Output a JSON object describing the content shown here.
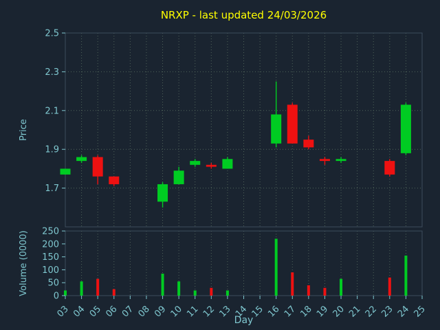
{
  "header": {
    "title": "NRXP - last updated 24/03/2026"
  },
  "chart_data": {
    "type": "candlestick",
    "title": "NRXP - last updated 24/03/2026",
    "xlabel": "Day",
    "price_axis": {
      "label": "Price",
      "ticks": [
        1.7,
        1.9,
        2.1,
        2.3,
        2.5
      ],
      "range": [
        1.5,
        2.5
      ],
      "grid": true
    },
    "volume_axis": {
      "label": "Volume (0000)",
      "ticks": [
        0,
        50,
        100,
        150,
        200,
        250
      ],
      "range": [
        0,
        250
      ],
      "grid": false
    },
    "x_ticks": [
      "03",
      "04",
      "05",
      "06",
      "07",
      "08",
      "09",
      "10",
      "11",
      "12",
      "13",
      "14",
      "15",
      "16",
      "17",
      "18",
      "19",
      "20",
      "21",
      "22",
      "23",
      "24",
      "25"
    ],
    "x_range": [
      3,
      25
    ],
    "candles": [
      {
        "day": 3,
        "open": 1.77,
        "high": 1.8,
        "low": 1.77,
        "close": 1.8,
        "volume": 20
      },
      {
        "day": 4,
        "open": 1.84,
        "high": 1.87,
        "low": 1.83,
        "close": 1.86,
        "volume": 55
      },
      {
        "day": 5,
        "open": 1.86,
        "high": 1.87,
        "low": 1.72,
        "close": 1.76,
        "volume": 65
      },
      {
        "day": 6,
        "open": 1.76,
        "high": 1.76,
        "low": 1.71,
        "close": 1.72,
        "volume": 25
      },
      {
        "day": 9,
        "open": 1.63,
        "high": 1.73,
        "low": 1.6,
        "close": 1.72,
        "volume": 85
      },
      {
        "day": 10,
        "open": 1.72,
        "high": 1.81,
        "low": 1.72,
        "close": 1.79,
        "volume": 55
      },
      {
        "day": 11,
        "open": 1.82,
        "high": 1.85,
        "low": 1.81,
        "close": 1.84,
        "volume": 20
      },
      {
        "day": 12,
        "open": 1.82,
        "high": 1.83,
        "low": 1.8,
        "close": 1.81,
        "volume": 30
      },
      {
        "day": 13,
        "open": 1.8,
        "high": 1.86,
        "low": 1.8,
        "close": 1.85,
        "volume": 20
      },
      {
        "day": 16,
        "open": 1.93,
        "high": 2.25,
        "low": 1.91,
        "close": 2.08,
        "volume": 220
      },
      {
        "day": 17,
        "open": 2.13,
        "high": 2.14,
        "low": 1.93,
        "close": 1.93,
        "volume": 90
      },
      {
        "day": 18,
        "open": 1.95,
        "high": 1.97,
        "low": 1.9,
        "close": 1.91,
        "volume": 40
      },
      {
        "day": 19,
        "open": 1.85,
        "high": 1.86,
        "low": 1.82,
        "close": 1.84,
        "volume": 30
      },
      {
        "day": 20,
        "open": 1.84,
        "high": 1.86,
        "low": 1.83,
        "close": 1.85,
        "volume": 65
      },
      {
        "day": 23,
        "open": 1.84,
        "high": 1.85,
        "low": 1.76,
        "close": 1.77,
        "volume": 70
      },
      {
        "day": 24,
        "open": 1.88,
        "high": 2.14,
        "low": 1.87,
        "close": 2.13,
        "volume": 155
      }
    ],
    "colors": {
      "up": "#00cc22",
      "down": "#ee1111",
      "background": "#1a2430",
      "grid": "#50645a",
      "axis_text": "#7fc7cf",
      "title": "#ffff00",
      "spine": "#3c4c5c"
    }
  }
}
